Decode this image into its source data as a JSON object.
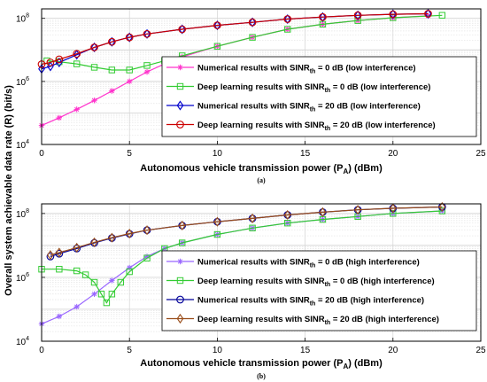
{
  "figure": {
    "shared_ylabel": "Overall system achievable data rate (R) (bit/s)"
  },
  "chart_data": [
    {
      "type": "line",
      "panel_label": "(a)",
      "xlabel": "Autonomous vehicle transmission power (P",
      "xlabel_sub": "A",
      "xlabel_tail": ") (dBm)",
      "xlim": [
        0,
        25
      ],
      "ylim": [
        10000,
        200000000
      ],
      "yscale": "log",
      "xticks": [
        0,
        5,
        10,
        15,
        20,
        25
      ],
      "yticks": [
        {
          "value": 10000,
          "base": "10",
          "exp": "4"
        },
        {
          "value": 1000000,
          "base": "10",
          "exp": "6"
        },
        {
          "value": 100000000,
          "base": "10",
          "exp": "8"
        }
      ],
      "grid": true,
      "legend_position": "lower-right",
      "series": [
        {
          "name": "Numerical results with SINR",
          "name_sub": "th",
          "name_tail": " = 0 dB (low interference)",
          "color": "#ff33cc",
          "marker": "asterisk",
          "x": [
            0,
            1,
            2,
            3,
            4,
            5,
            6,
            7,
            8,
            10,
            12,
            14,
            16,
            18,
            20,
            22
          ],
          "y": [
            40000,
            70000,
            130000,
            250000,
            500000,
            1000000,
            2000000,
            3600000,
            6000000,
            13000000,
            25000000,
            45000000,
            65000000,
            85000000,
            105000000,
            120000000
          ]
        },
        {
          "name": "Deep learning results with SINR",
          "name_sub": "th",
          "name_tail": " = 0 dB (low interference)",
          "color": "#33cc33",
          "marker": "square",
          "x": [
            0.3,
            1,
            2,
            3,
            4,
            5,
            6,
            7,
            8,
            10,
            12,
            14,
            16,
            18,
            20,
            22.8
          ],
          "y": [
            4500000,
            4200000,
            3600000,
            2800000,
            2300000,
            2300000,
            3200000,
            4500000,
            6500000,
            13000000,
            25000000,
            45000000,
            65000000,
            85000000,
            105000000,
            125000000
          ]
        },
        {
          "name": "Numerical results with SINR",
          "name_sub": "th",
          "name_tail": " = 20 dB (low interference)",
          "color": "#0000cc",
          "marker": "diamond",
          "x": [
            0,
            0.5,
            1,
            2,
            3,
            4,
            5,
            6,
            8,
            10,
            12,
            14,
            16,
            18,
            20,
            22
          ],
          "y": [
            2500000,
            3000000,
            4000000,
            7000000,
            12000000,
            18000000,
            25000000,
            32000000,
            45000000,
            60000000,
            75000000,
            95000000,
            110000000,
            125000000,
            135000000,
            140000000
          ]
        },
        {
          "name": "Deep learning results with SINR",
          "name_sub": "th",
          "name_tail": " = 20 dB (low interference)",
          "color": "#cc0000",
          "marker": "circle",
          "x": [
            0,
            0.5,
            1,
            2,
            3,
            4,
            5,
            6,
            8,
            10,
            12,
            14,
            16,
            18,
            20,
            22
          ],
          "y": [
            3500000,
            4000000,
            5000000,
            7500000,
            12000000,
            18000000,
            25000000,
            32000000,
            45000000,
            60000000,
            75000000,
            95000000,
            110000000,
            125000000,
            135000000,
            140000000
          ]
        }
      ]
    },
    {
      "type": "line",
      "panel_label": "(b)",
      "xlabel": "Autonomous vehicle transmission power (P",
      "xlabel_sub": "A",
      "xlabel_tail": ") (dBm)",
      "xlim": [
        0,
        25
      ],
      "ylim": [
        10000,
        200000000
      ],
      "yscale": "log",
      "xticks": [
        0,
        5,
        10,
        15,
        20,
        25
      ],
      "yticks": [
        {
          "value": 10000,
          "base": "10",
          "exp": "4"
        },
        {
          "value": 1000000,
          "base": "10",
          "exp": "6"
        },
        {
          "value": 100000000,
          "base": "10",
          "exp": "8"
        }
      ],
      "grid": true,
      "legend_position": "lower-right",
      "series": [
        {
          "name": "Numerical results with SINR",
          "name_sub": "th",
          "name_tail": " = 0 dB (high interference)",
          "color": "#9966ff",
          "marker": "asterisk",
          "x": [
            0,
            1,
            2,
            3,
            4,
            5,
            6,
            7,
            8,
            10,
            12,
            14,
            16,
            18,
            20,
            22.8
          ],
          "y": [
            35000,
            60000,
            120000,
            300000,
            800000,
            2000000,
            4500000,
            8000000,
            12000000,
            22000000,
            35000000,
            50000000,
            65000000,
            80000000,
            100000000,
            120000000
          ]
        },
        {
          "name": "Deep learning results with SINR",
          "name_sub": "th",
          "name_tail": " = 0 dB (high interference)",
          "color": "#33cc33",
          "marker": "square",
          "x": [
            0,
            1,
            2,
            2.5,
            3,
            3.4,
            3.7,
            4,
            4.5,
            5,
            6,
            7,
            8,
            10,
            12,
            14,
            16,
            18,
            20,
            22.8
          ],
          "y": [
            1800000,
            1800000,
            1600000,
            1200000,
            700000,
            300000,
            160000,
            300000,
            700000,
            1500000,
            4000000,
            8000000,
            12000000,
            22000000,
            35000000,
            50000000,
            65000000,
            80000000,
            100000000,
            120000000
          ]
        },
        {
          "name": "Numerical results with SINR",
          "name_sub": "th",
          "name_tail": " = 20 dB (high interference)",
          "color": "#000099",
          "marker": "circle",
          "x": [
            0.5,
            1,
            2,
            3,
            4,
            5,
            6,
            8,
            10,
            12,
            14,
            16,
            18,
            20,
            22.8
          ],
          "y": [
            4500000,
            5500000,
            8000000,
            12000000,
            17000000,
            23000000,
            30000000,
            42000000,
            55000000,
            70000000,
            90000000,
            110000000,
            130000000,
            145000000,
            160000000
          ]
        },
        {
          "name": "Deep learning results with SINR",
          "name_sub": "th",
          "name_tail": " = 20 dB (high interference)",
          "color": "#994d1a",
          "marker": "diamond",
          "x": [
            0.5,
            1,
            2,
            3,
            4,
            5,
            6,
            8,
            10,
            12,
            14,
            16,
            18,
            20,
            22.8
          ],
          "y": [
            5000000,
            6000000,
            8500000,
            12500000,
            17500000,
            23500000,
            30000000,
            42000000,
            55000000,
            70000000,
            90000000,
            110000000,
            130000000,
            145000000,
            160000000
          ]
        }
      ]
    }
  ]
}
